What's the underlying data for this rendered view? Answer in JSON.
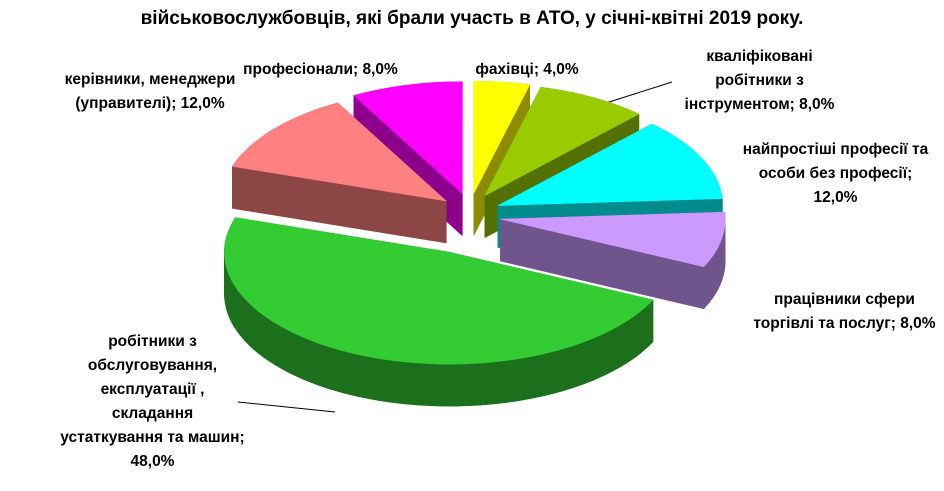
{
  "chart_data": {
    "type": "pie",
    "title": "військовослужбовців, які брали участь в АТО, у січні-квітні  2019 року.",
    "categories": [
      "фахівці",
      "кваліфіковані робітники з інструментом",
      "найпростіші професії та особи без професії",
      "працівники сфери торгівлі та послуг",
      "робітники з обслуговування, експлуатації , складання устаткування та машин",
      "керівники, менеджери (управителі)",
      "професіонали"
    ],
    "values": [
      4,
      8,
      12,
      8,
      48,
      12,
      8
    ],
    "value_labels": [
      "4,0%",
      "8,0%",
      "12,0%",
      "8,0%",
      "48,0%",
      "12,0%",
      "8,0%"
    ],
    "colors": [
      "#ffff00",
      "#99cc00",
      "#00ffff",
      "#cc99ff",
      "#33cc33",
      "#ff8080",
      "#ff00ff"
    ]
  }
}
